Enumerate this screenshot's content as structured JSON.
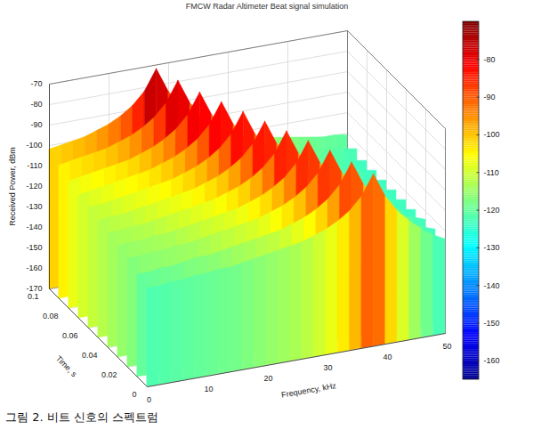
{
  "chart_data": {
    "type": "surface",
    "title": "FMCW Radar Altimeter Beat signal simulation",
    "caption": "그림 2. 비트 신호의 스펙트럼",
    "x_label": "Frequency, kHz",
    "y_label": "Time, s",
    "z_label": "Received Power, dBm",
    "x": [
      0,
      2,
      4,
      6,
      8,
      10,
      12,
      14,
      16,
      18,
      20,
      22,
      24,
      26,
      28,
      30,
      32,
      34,
      36,
      38,
      40,
      42,
      44,
      46,
      48,
      50
    ],
    "y": [
      0,
      0.01,
      0.02,
      0.03,
      0.04,
      0.05,
      0.06,
      0.07,
      0.08,
      0.09,
      0.1
    ],
    "z": [
      [
        -122,
        -122,
        -121,
        -121,
        -120,
        -120,
        -119,
        -119,
        -118,
        -117,
        -116,
        -115,
        -114,
        -113,
        -111,
        -109,
        -106,
        -102,
        -96,
        -86,
        -98,
        -106,
        -112,
        -117,
        -121,
        -124
      ],
      [
        -120,
        -120,
        -119,
        -119,
        -118,
        -117,
        -117,
        -116,
        -115,
        -114,
        -113,
        -112,
        -111,
        -109,
        -107,
        -104,
        -100,
        -94,
        -84,
        -96,
        -104,
        -110,
        -115,
        -119,
        -122,
        -124
      ],
      [
        -117,
        -117,
        -116,
        -116,
        -115,
        -115,
        -114,
        -113,
        -112,
        -111,
        -110,
        -109,
        -107,
        -105,
        -102,
        -98,
        -92,
        -82,
        -94,
        -102,
        -108,
        -113,
        -117,
        -120,
        -122,
        -124
      ],
      [
        -116,
        -115,
        -115,
        -114,
        -114,
        -113,
        -112,
        -111,
        -110,
        -109,
        -108,
        -106,
        -104,
        -101,
        -97,
        -91,
        -81,
        -93,
        -101,
        -107,
        -112,
        -116,
        -119,
        -121,
        -123,
        -124
      ],
      [
        -114,
        -114,
        -113,
        -113,
        -112,
        -111,
        -110,
        -109,
        -108,
        -107,
        -105,
        -103,
        -100,
        -96,
        -90,
        -80,
        -92,
        -100,
        -106,
        -111,
        -115,
        -118,
        -120,
        -122,
        -123,
        -124
      ],
      [
        -113,
        -112,
        -112,
        -111,
        -110,
        -109,
        -108,
        -107,
        -106,
        -104,
        -102,
        -99,
        -95,
        -89,
        -79,
        -91,
        -99,
        -105,
        -110,
        -114,
        -117,
        -119,
        -121,
        -122,
        -123,
        -124
      ],
      [
        -111,
        -111,
        -110,
        -109,
        -108,
        -107,
        -106,
        -105,
        -103,
        -101,
        -98,
        -94,
        -88,
        -78,
        -90,
        -98,
        -104,
        -109,
        -113,
        -116,
        -118,
        -120,
        -121,
        -122,
        -123,
        -124
      ],
      [
        -110,
        -109,
        -108,
        -107,
        -106,
        -105,
        -104,
        -102,
        -100,
        -97,
        -93,
        -87,
        -77,
        -89,
        -97,
        -103,
        -108,
        -112,
        -115,
        -117,
        -119,
        -120,
        -121,
        -122,
        -123,
        -124
      ],
      [
        -108,
        -107,
        -106,
        -105,
        -104,
        -103,
        -101,
        -99,
        -96,
        -92,
        -86,
        -76,
        -88,
        -96,
        -102,
        -107,
        -111,
        -114,
        -116,
        -118,
        -119,
        -120,
        -121,
        -122,
        -123,
        -124
      ],
      [
        -105,
        -104,
        -103,
        -102,
        -101,
        -99,
        -97,
        -94,
        -90,
        -84,
        -74,
        -86,
        -94,
        -100,
        -105,
        -109,
        -112,
        -114,
        -116,
        -117,
        -118,
        -119,
        -120,
        -121,
        -122,
        -123
      ],
      [
        -102,
        -101,
        -100,
        -99,
        -97,
        -95,
        -92,
        -88,
        -82,
        -72,
        -84,
        -92,
        -98,
        -103,
        -107,
        -110,
        -112,
        -114,
        -115,
        -116,
        -117,
        -118,
        -119,
        -120,
        -120,
        -121
      ]
    ],
    "xlim": [
      0,
      50
    ],
    "xticks": [
      0,
      10,
      20,
      30,
      40,
      50
    ],
    "ylim": [
      0,
      0.1
    ],
    "yticks": [
      0,
      0.02,
      0.04,
      0.06,
      0.08,
      0.1
    ],
    "zlim": [
      -170,
      -70
    ],
    "zticks": [
      -170,
      -160,
      -150,
      -140,
      -130,
      -120,
      -110,
      -100,
      -90,
      -80,
      -70
    ],
    "colorbar": {
      "lim": [
        -165,
        -70
      ],
      "ticks": [
        -160,
        -150,
        -140,
        -130,
        -120,
        -110,
        -100,
        -90,
        -80
      ]
    },
    "grid": true
  }
}
